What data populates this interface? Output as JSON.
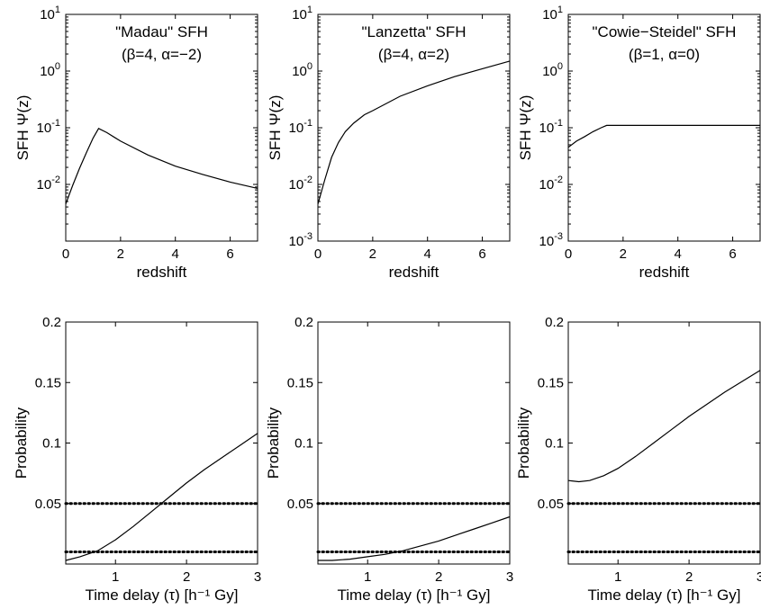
{
  "chart_data": [
    {
      "type": "line",
      "panel": "top-left",
      "title": "\"Madau\" SFH",
      "subtitle": "(β=4, α=−2)",
      "xlabel": "redshift",
      "ylabel": "SFH Ψ(z)",
      "xlim": [
        0,
        7
      ],
      "ylim": [
        0.001,
        10
      ],
      "yscale": "log",
      "xticks": [
        0,
        2,
        4,
        6
      ],
      "yticks": [
        0.01,
        0.1,
        1,
        10
      ],
      "series": [
        {
          "x": [
            0,
            0.25,
            0.5,
            0.75,
            1.0,
            1.2,
            1.5,
            2,
            3,
            4,
            5,
            6,
            7
          ],
          "y": [
            0.0045,
            0.0095,
            0.019,
            0.036,
            0.066,
            0.097,
            0.082,
            0.058,
            0.033,
            0.021,
            0.015,
            0.011,
            0.0085
          ]
        }
      ]
    },
    {
      "type": "line",
      "panel": "top-middle",
      "title": "\"Lanzetta\" SFH",
      "subtitle": "(β=4, α=2)",
      "xlabel": "redshift",
      "ylabel": "SFH Ψ(z)",
      "xlim": [
        0,
        7
      ],
      "ylim": [
        0.001,
        10
      ],
      "yscale": "log",
      "xticks": [
        0,
        2,
        4,
        6
      ],
      "yticks": [
        0.001,
        0.01,
        0.1,
        1,
        10
      ],
      "series": [
        {
          "x": [
            0,
            0.25,
            0.5,
            0.75,
            1.0,
            1.3,
            1.7,
            2,
            3,
            4,
            5,
            6,
            7
          ],
          "y": [
            0.0045,
            0.012,
            0.03,
            0.055,
            0.085,
            0.12,
            0.17,
            0.2,
            0.36,
            0.55,
            0.8,
            1.1,
            1.5
          ]
        }
      ]
    },
    {
      "type": "line",
      "panel": "top-right",
      "title": "\"Cowie−Steidel\" SFH",
      "subtitle": "(β=1, α=0)",
      "xlabel": "redshift",
      "ylabel": "SFH Ψ(z)",
      "xlim": [
        0,
        7
      ],
      "ylim": [
        0.001,
        10
      ],
      "yscale": "log",
      "xticks": [
        0,
        2,
        4,
        6
      ],
      "yticks": [
        0.001,
        0.01,
        0.1,
        1,
        10
      ],
      "series": [
        {
          "x": [
            0,
            0.3,
            0.6,
            0.9,
            1.2,
            1.4,
            2,
            3,
            4,
            5,
            6,
            7
          ],
          "y": [
            0.045,
            0.058,
            0.07,
            0.085,
            0.1,
            0.11,
            0.11,
            0.11,
            0.11,
            0.11,
            0.11,
            0.11
          ]
        }
      ]
    },
    {
      "type": "line",
      "panel": "bottom-left",
      "xlabel": "Time delay (τ) [h⁻¹ Gy]",
      "ylabel": "Probability",
      "xlim": [
        0.3,
        3
      ],
      "ylim": [
        0,
        0.2
      ],
      "xticks": [
        1,
        2,
        3
      ],
      "yticks": [
        0.05,
        0.1,
        0.15,
        0.2
      ],
      "series": [
        {
          "x": [
            0.3,
            0.5,
            0.75,
            1.0,
            1.25,
            1.5,
            1.75,
            2.0,
            2.25,
            2.5,
            2.75,
            3.0
          ],
          "y": [
            0.003,
            0.006,
            0.011,
            0.02,
            0.031,
            0.043,
            0.055,
            0.067,
            0.078,
            0.088,
            0.098,
            0.108
          ]
        },
        {
          "x": [
            0.3,
            3.0
          ],
          "y": [
            0.05,
            0.05
          ],
          "style": "dotted"
        },
        {
          "x": [
            0.3,
            3.0
          ],
          "y": [
            0.01,
            0.01
          ],
          "style": "dotted"
        }
      ]
    },
    {
      "type": "line",
      "panel": "bottom-middle",
      "xlabel": "Time delay (τ) [h⁻¹ Gy]",
      "ylabel": "Probability",
      "xlim": [
        0.3,
        3
      ],
      "ylim": [
        0,
        0.2
      ],
      "xticks": [
        1,
        2,
        3
      ],
      "yticks": [
        0.05,
        0.1,
        0.15,
        0.2
      ],
      "series": [
        {
          "x": [
            0.3,
            0.5,
            0.75,
            1.0,
            1.25,
            1.5,
            1.75,
            2.0,
            2.25,
            2.5,
            2.75,
            3.0
          ],
          "y": [
            0.003,
            0.003,
            0.004,
            0.006,
            0.008,
            0.011,
            0.015,
            0.019,
            0.024,
            0.029,
            0.034,
            0.039
          ]
        },
        {
          "x": [
            0.3,
            3.0
          ],
          "y": [
            0.05,
            0.05
          ],
          "style": "dotted"
        },
        {
          "x": [
            0.3,
            3.0
          ],
          "y": [
            0.01,
            0.01
          ],
          "style": "dotted"
        }
      ]
    },
    {
      "type": "line",
      "panel": "bottom-right",
      "xlabel": "Time delay (τ) [h⁻¹ Gy]",
      "ylabel": "Probability",
      "xlim": [
        0.3,
        3
      ],
      "ylim": [
        0,
        0.2
      ],
      "xticks": [
        1,
        2,
        3
      ],
      "yticks": [
        0.05,
        0.1,
        0.15,
        0.2
      ],
      "series": [
        {
          "x": [
            0.3,
            0.45,
            0.6,
            0.8,
            1.0,
            1.25,
            1.5,
            1.75,
            2.0,
            2.25,
            2.5,
            2.75,
            3.0
          ],
          "y": [
            0.069,
            0.068,
            0.069,
            0.073,
            0.079,
            0.089,
            0.1,
            0.111,
            0.122,
            0.132,
            0.142,
            0.151,
            0.16
          ]
        },
        {
          "x": [
            0.3,
            3.0
          ],
          "y": [
            0.05,
            0.05
          ],
          "style": "dotted"
        },
        {
          "x": [
            0.3,
            3.0
          ],
          "y": [
            0.01,
            0.01
          ],
          "style": "dotted"
        }
      ]
    }
  ]
}
